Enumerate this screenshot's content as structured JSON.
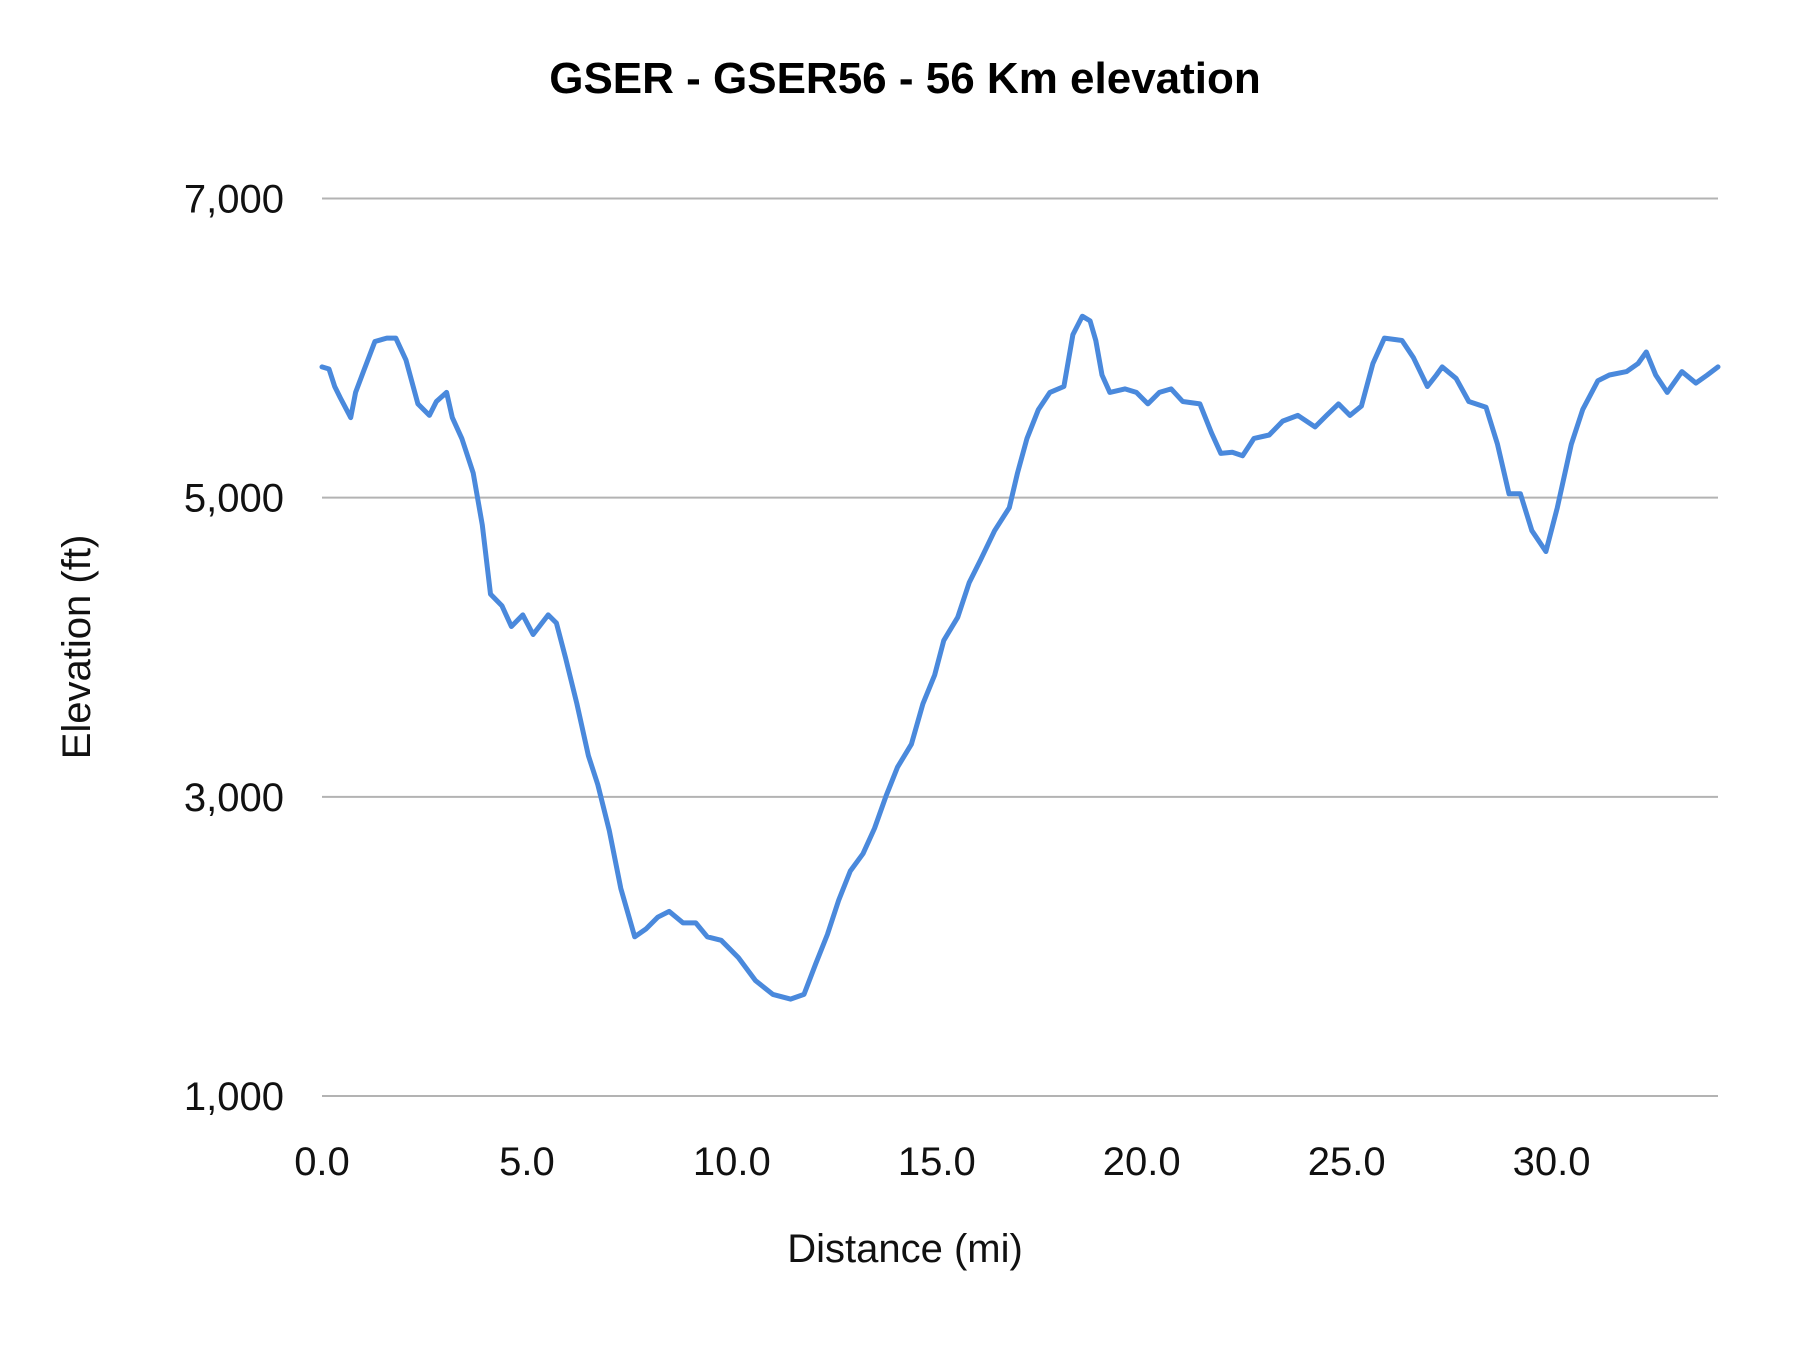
{
  "chart_data": {
    "type": "line",
    "title": "GSER - GSER56 - 56 Km elevation",
    "xlabel": "Distance (mi)",
    "ylabel": "Elevation (ft)",
    "xlim": [
      0,
      34.06
    ],
    "ylim": [
      1000,
      7000
    ],
    "xticks": [
      "0.0",
      "5.0",
      "10.0",
      "15.0",
      "20.0",
      "25.0",
      "30.0"
    ],
    "xtick_values": [
      0,
      5,
      10,
      15,
      20,
      25,
      30
    ],
    "yticks": [
      "1,000",
      "3,000",
      "5,000",
      "7,000"
    ],
    "ytick_values": [
      1000,
      3000,
      5000,
      7000
    ],
    "grid": "horizontal",
    "legend": "none",
    "line_color": "#4a89dc",
    "grid_color": "#b3b3b3",
    "series": [
      {
        "x": [
          0,
          0.17,
          0.31,
          0.45,
          0.7,
          0.82,
          1.01,
          1.29,
          1.58,
          1.8,
          2.05,
          2.34,
          2.62,
          2.79,
          3.04,
          3.18,
          3.41,
          3.69,
          3.91,
          4.11,
          4.39,
          4.62,
          4.9,
          5.15,
          5.52,
          5.72,
          5.94,
          6.22,
          6.5,
          6.73,
          7.01,
          7.29,
          7.63,
          7.91,
          8.19,
          8.47,
          8.81,
          9.12,
          9.4,
          9.74,
          10.16,
          10.58,
          11.0,
          11.43,
          11.76,
          12.05,
          12.33,
          12.61,
          12.89,
          13.2,
          13.48,
          13.76,
          14.04,
          14.38,
          14.66,
          14.95,
          15.17,
          15.51,
          15.79,
          16.07,
          16.41,
          16.77,
          16.97,
          17.2,
          17.48,
          17.76,
          18.1,
          18.32,
          18.55,
          18.74,
          18.88,
          19.03,
          19.22,
          19.59,
          19.87,
          20.15,
          20.43,
          20.72,
          21.0,
          21.42,
          21.7,
          21.93,
          22.21,
          22.46,
          22.74,
          23.11,
          23.44,
          23.81,
          24.23,
          24.51,
          24.8,
          25.08,
          25.36,
          25.64,
          25.92,
          26.35,
          26.63,
          26.97,
          27.19,
          27.33,
          27.67,
          27.98,
          28.4,
          28.68,
          28.96,
          29.24,
          29.52,
          29.86,
          30.14,
          30.48,
          30.76,
          31.13,
          31.41,
          31.83,
          32.11,
          32.31,
          32.54,
          32.82,
          33.18,
          33.52,
          33.8,
          34.06
        ],
        "y": [
          5874,
          5860,
          5743,
          5666,
          5535,
          5704,
          5843,
          6044,
          6067,
          6067,
          5920,
          5627,
          5550,
          5643,
          5704,
          5535,
          5396,
          5165,
          4817,
          4355,
          4278,
          4139,
          4216,
          4085,
          4216,
          4162,
          3931,
          3622,
          3275,
          3082,
          2774,
          2388,
          2064,
          2118,
          2195,
          2234,
          2157,
          2157,
          2064,
          2041,
          1925,
          1771,
          1679,
          1648,
          1679,
          1887,
          2080,
          2311,
          2504,
          2620,
          2789,
          3005,
          3198,
          3352,
          3622,
          3815,
          4046,
          4200,
          4432,
          4586,
          4779,
          4933,
          5165,
          5396,
          5589,
          5704,
          5743,
          6090,
          6213,
          6182,
          6051,
          5820,
          5704,
          5727,
          5704,
          5627,
          5704,
          5727,
          5643,
          5627,
          5434,
          5296,
          5303,
          5280,
          5396,
          5419,
          5512,
          5550,
          5473,
          5550,
          5627,
          5550,
          5612,
          5897,
          6067,
          6051,
          5935,
          5743,
          5820,
          5874,
          5797,
          5643,
          5604,
          5357,
          5026,
          5026,
          4779,
          4640,
          4933,
          5357,
          5589,
          5782,
          5820,
          5843,
          5897,
          5974,
          5820,
          5704,
          5843,
          5766,
          5820,
          5874
        ]
      }
    ]
  }
}
